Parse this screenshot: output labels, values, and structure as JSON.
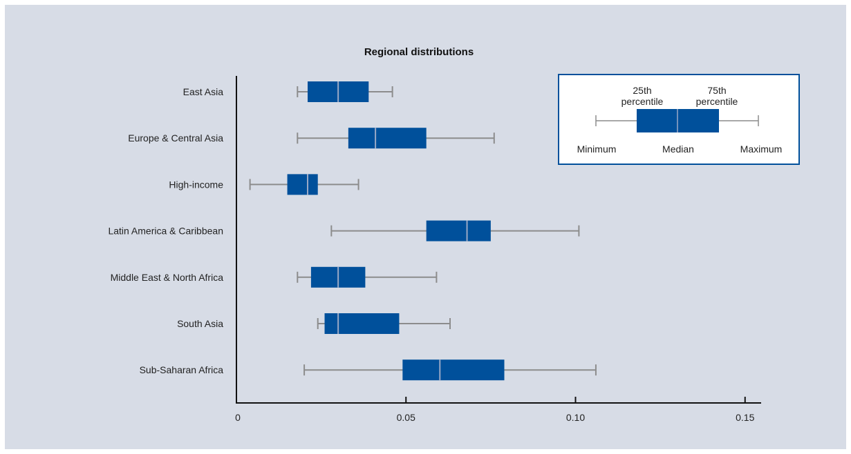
{
  "chart_data": {
    "type": "boxplot",
    "title": "Regional distributions",
    "xlabel": "",
    "ylabel": "",
    "xlim": [
      0,
      0.155
    ],
    "xticks": [
      0,
      0.05,
      0.1,
      0.15
    ],
    "xtick_labels": [
      "0",
      "0.05",
      "0.10",
      "0.15"
    ],
    "grid": false,
    "colors": {
      "box": "#00509b",
      "whisker": "#8c8c8c",
      "median": "#9aa9c6",
      "axis": "#111111",
      "background": "#d7dce6"
    },
    "categories": [
      "East Asia",
      "Europe & Central Asia",
      "High-income",
      "Latin America & Caribbean",
      "Middle East & North Africa",
      "South Asia",
      "Sub-Saharan Africa"
    ],
    "boxes": [
      {
        "min": 0.018,
        "q1": 0.021,
        "median": 0.03,
        "q3": 0.039,
        "max": 0.046
      },
      {
        "min": 0.018,
        "q1": 0.033,
        "median": 0.041,
        "q3": 0.056,
        "max": 0.076
      },
      {
        "min": 0.004,
        "q1": 0.015,
        "median": 0.021,
        "q3": 0.024,
        "max": 0.036
      },
      {
        "min": 0.028,
        "q1": 0.056,
        "median": 0.068,
        "q3": 0.075,
        "max": 0.101
      },
      {
        "min": 0.018,
        "q1": 0.022,
        "median": 0.03,
        "q3": 0.038,
        "max": 0.059
      },
      {
        "min": 0.024,
        "q1": 0.026,
        "median": 0.03,
        "q3": 0.048,
        "max": 0.063
      },
      {
        "min": 0.02,
        "q1": 0.049,
        "median": 0.06,
        "q3": 0.079,
        "max": 0.106
      }
    ],
    "legend": {
      "placement": "top-right",
      "labels": {
        "q1": [
          "25th",
          "percentile"
        ],
        "q3": [
          "75th",
          "percentile"
        ],
        "min": "Minimum",
        "median": "Median",
        "max": "Maximum"
      }
    }
  }
}
